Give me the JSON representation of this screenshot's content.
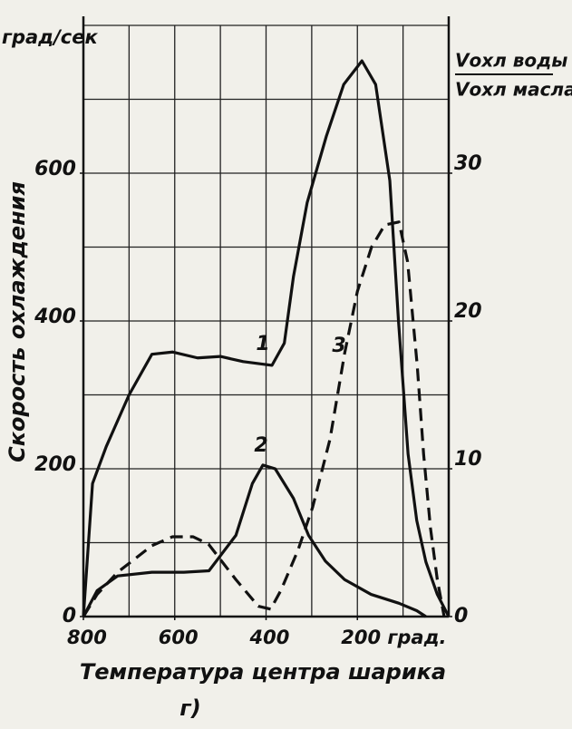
{
  "chart_data": {
    "type": "line",
    "y_unit": "град/сек",
    "y2_label": [
      "Vохл воды",
      "Vохл масла"
    ],
    "ylabel": "Скорость охлаждения",
    "xlabel": "Температура центра шарика",
    "caption": "г)",
    "xlim": [
      800,
      0
    ],
    "xticks": [
      800,
      600,
      400,
      {
        "value": 200,
        "label": "200 град."
      }
    ],
    "ylim": [
      0,
      800
    ],
    "yticks": [
      0,
      200,
      400,
      600
    ],
    "y2lim": [
      0,
      40
    ],
    "y2ticks": [
      0,
      10,
      20,
      30
    ],
    "grid": true,
    "series": [
      {
        "name": "1",
        "color": "#111",
        "dash": false,
        "x": [
          800,
          780,
          750,
          700,
          650,
          605,
          550,
          500,
          450,
          387,
          360,
          340,
          310,
          268,
          230,
          190,
          160,
          129,
          110,
          89,
          70,
          50,
          25,
          0
        ],
        "values": [
          0,
          180,
          230,
          300,
          355,
          358,
          350,
          352,
          345,
          340,
          370,
          460,
          560,
          650,
          720,
          752,
          720,
          590,
          400,
          220,
          130,
          74,
          30,
          0
        ]
      },
      {
        "name": "2",
        "color": "#111",
        "dash": false,
        "x": [
          800,
          770,
          725,
          650,
          580,
          525,
          466,
          430,
          407,
          380,
          340,
          307,
          270,
          228,
          170,
          109,
          70,
          50
        ],
        "values": [
          0,
          35,
          55,
          60,
          60,
          62,
          110,
          180,
          205,
          200,
          160,
          110,
          75,
          50,
          30,
          18,
          8,
          0
        ]
      },
      {
        "name": "3",
        "color": "#111",
        "dash": true,
        "axis": "y2",
        "x": [
          800,
          770,
          725,
          650,
          605,
          560,
          526,
          466,
          417,
          390,
          367,
          330,
          298,
          260,
          228,
          200,
          169,
          140,
          109,
          90,
          69,
          55,
          40,
          25,
          10
        ],
        "values": [
          0,
          1.5,
          3,
          4.8,
          5.4,
          5.4,
          4.9,
          2.5,
          0.7,
          0.5,
          1.8,
          4.5,
          7.4,
          12,
          17.8,
          22,
          25,
          26.5,
          26.7,
          24,
          17,
          11,
          6,
          2.5,
          0
        ]
      }
    ]
  }
}
